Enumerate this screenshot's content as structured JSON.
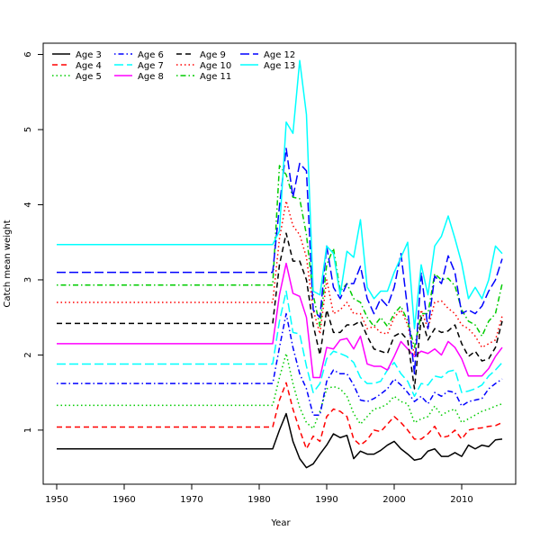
{
  "chart_data": {
    "type": "line",
    "title": "",
    "xlabel": "Year",
    "ylabel": "Catch mean weight",
    "xlim": [
      1948,
      2018
    ],
    "ylim": [
      0.28,
      6.15
    ],
    "xticks": [
      1950,
      1960,
      1970,
      1980,
      1990,
      2000,
      2010
    ],
    "yticks": [
      1,
      2,
      3,
      4,
      5,
      6
    ],
    "grid": false,
    "legend_position": "top-left",
    "x": [
      1950,
      1951,
      1952,
      1953,
      1954,
      1955,
      1956,
      1957,
      1958,
      1959,
      1960,
      1961,
      1962,
      1963,
      1964,
      1965,
      1966,
      1967,
      1968,
      1969,
      1970,
      1971,
      1972,
      1973,
      1974,
      1975,
      1976,
      1977,
      1978,
      1979,
      1980,
      1981,
      1982,
      1983,
      1984,
      1985,
      1986,
      1987,
      1988,
      1989,
      1990,
      1991,
      1992,
      1993,
      1994,
      1995,
      1996,
      1997,
      1998,
      1999,
      2000,
      2001,
      2002,
      2003,
      2004,
      2005,
      2006,
      2007,
      2008,
      2009,
      2010,
      2011,
      2012,
      2013,
      2014,
      2015,
      2016
    ],
    "series": [
      {
        "name": "Age 3",
        "color": "#000000",
        "dash": "solid",
        "values": [
          0.75,
          0.75,
          0.75,
          0.75,
          0.75,
          0.75,
          0.75,
          0.75,
          0.75,
          0.75,
          0.75,
          0.75,
          0.75,
          0.75,
          0.75,
          0.75,
          0.75,
          0.75,
          0.75,
          0.75,
          0.75,
          0.75,
          0.75,
          0.75,
          0.75,
          0.75,
          0.75,
          0.75,
          0.75,
          0.75,
          0.75,
          0.75,
          0.75,
          1.0,
          1.22,
          0.85,
          0.62,
          0.5,
          0.55,
          0.68,
          0.8,
          0.95,
          0.9,
          0.93,
          0.62,
          0.72,
          0.68,
          0.68,
          0.73,
          0.8,
          0.85,
          0.75,
          0.68,
          0.6,
          0.62,
          0.72,
          0.75,
          0.65,
          0.65,
          0.7,
          0.65,
          0.8,
          0.75,
          0.8,
          0.78,
          0.87,
          0.88
        ]
      },
      {
        "name": "Age 4",
        "color": "#ff0000",
        "dash": "dashed",
        "values": [
          1.04,
          1.04,
          1.04,
          1.04,
          1.04,
          1.04,
          1.04,
          1.04,
          1.04,
          1.04,
          1.04,
          1.04,
          1.04,
          1.04,
          1.04,
          1.04,
          1.04,
          1.04,
          1.04,
          1.04,
          1.04,
          1.04,
          1.04,
          1.04,
          1.04,
          1.04,
          1.04,
          1.04,
          1.04,
          1.04,
          1.04,
          1.04,
          1.04,
          1.4,
          1.63,
          1.28,
          1.0,
          0.75,
          0.92,
          0.85,
          1.18,
          1.28,
          1.25,
          1.18,
          0.88,
          0.8,
          0.87,
          1.0,
          0.98,
          1.08,
          1.18,
          1.1,
          1.0,
          0.88,
          0.88,
          0.95,
          1.05,
          0.9,
          0.92,
          1.0,
          0.88,
          1.0,
          1.02,
          1.03,
          1.05,
          1.06,
          1.1
        ]
      },
      {
        "name": "Age 5",
        "color": "#00cc00",
        "dash": "dotted",
        "values": [
          1.33,
          1.33,
          1.33,
          1.33,
          1.33,
          1.33,
          1.33,
          1.33,
          1.33,
          1.33,
          1.33,
          1.33,
          1.33,
          1.33,
          1.33,
          1.33,
          1.33,
          1.33,
          1.33,
          1.33,
          1.33,
          1.33,
          1.33,
          1.33,
          1.33,
          1.33,
          1.33,
          1.33,
          1.33,
          1.33,
          1.33,
          1.33,
          1.33,
          1.7,
          2.02,
          1.62,
          1.3,
          1.1,
          1.02,
          1.25,
          1.55,
          1.58,
          1.55,
          1.45,
          1.22,
          1.08,
          1.18,
          1.28,
          1.3,
          1.35,
          1.45,
          1.38,
          1.35,
          1.1,
          1.15,
          1.18,
          1.32,
          1.2,
          1.25,
          1.28,
          1.1,
          1.15,
          1.2,
          1.25,
          1.28,
          1.32,
          1.35
        ]
      },
      {
        "name": "Age 6",
        "color": "#0000ff",
        "dash": "dashdot",
        "values": [
          1.62,
          1.62,
          1.62,
          1.62,
          1.62,
          1.62,
          1.62,
          1.62,
          1.62,
          1.62,
          1.62,
          1.62,
          1.62,
          1.62,
          1.62,
          1.62,
          1.62,
          1.62,
          1.62,
          1.62,
          1.62,
          1.62,
          1.62,
          1.62,
          1.62,
          1.62,
          1.62,
          1.62,
          1.62,
          1.62,
          1.62,
          1.62,
          1.62,
          2.1,
          2.55,
          2.1,
          1.75,
          1.55,
          1.2,
          1.2,
          1.65,
          1.8,
          1.75,
          1.75,
          1.6,
          1.4,
          1.38,
          1.42,
          1.48,
          1.55,
          1.68,
          1.6,
          1.5,
          1.38,
          1.45,
          1.35,
          1.5,
          1.45,
          1.52,
          1.5,
          1.32,
          1.38,
          1.4,
          1.42,
          1.55,
          1.62,
          1.68
        ]
      },
      {
        "name": "Age 7",
        "color": "#00ffff",
        "dash": "longdash",
        "values": [
          1.88,
          1.88,
          1.88,
          1.88,
          1.88,
          1.88,
          1.88,
          1.88,
          1.88,
          1.88,
          1.88,
          1.88,
          1.88,
          1.88,
          1.88,
          1.88,
          1.88,
          1.88,
          1.88,
          1.88,
          1.88,
          1.88,
          1.88,
          1.88,
          1.88,
          1.88,
          1.88,
          1.88,
          1.88,
          1.88,
          1.88,
          1.88,
          1.88,
          2.45,
          2.85,
          2.3,
          2.28,
          1.85,
          1.5,
          1.62,
          1.95,
          2.05,
          2.02,
          1.98,
          1.9,
          1.7,
          1.62,
          1.62,
          1.65,
          1.8,
          1.9,
          1.75,
          1.65,
          1.45,
          1.62,
          1.6,
          1.72,
          1.7,
          1.78,
          1.8,
          1.5,
          1.52,
          1.55,
          1.6,
          1.72,
          1.8,
          1.9
        ]
      },
      {
        "name": "Age 8",
        "color": "#ff00ff",
        "dash": "solid",
        "values": [
          2.15,
          2.15,
          2.15,
          2.15,
          2.15,
          2.15,
          2.15,
          2.15,
          2.15,
          2.15,
          2.15,
          2.15,
          2.15,
          2.15,
          2.15,
          2.15,
          2.15,
          2.15,
          2.15,
          2.15,
          2.15,
          2.15,
          2.15,
          2.15,
          2.15,
          2.15,
          2.15,
          2.15,
          2.15,
          2.15,
          2.15,
          2.15,
          2.15,
          2.8,
          3.22,
          2.82,
          2.78,
          2.5,
          1.7,
          1.7,
          2.1,
          2.08,
          2.2,
          2.22,
          2.08,
          2.25,
          1.88,
          1.85,
          1.85,
          1.8,
          1.98,
          2.18,
          2.08,
          1.98,
          2.05,
          2.02,
          2.08,
          2.0,
          2.18,
          2.1,
          1.95,
          1.72,
          1.72,
          1.72,
          1.82,
          1.98,
          2.1
        ]
      },
      {
        "name": "Age 9",
        "color": "#000000",
        "dash": "dashed",
        "values": [
          2.42,
          2.42,
          2.42,
          2.42,
          2.42,
          2.42,
          2.42,
          2.42,
          2.42,
          2.42,
          2.42,
          2.42,
          2.42,
          2.42,
          2.42,
          2.42,
          2.42,
          2.42,
          2.42,
          2.42,
          2.42,
          2.42,
          2.42,
          2.42,
          2.42,
          2.42,
          2.42,
          2.42,
          2.42,
          2.42,
          2.42,
          2.42,
          2.42,
          3.2,
          3.62,
          3.25,
          3.25,
          3.0,
          2.4,
          2.0,
          2.6,
          2.3,
          2.3,
          2.4,
          2.4,
          2.45,
          2.25,
          2.08,
          2.05,
          2.02,
          2.25,
          2.3,
          2.2,
          1.55,
          2.5,
          2.2,
          2.35,
          2.3,
          2.32,
          2.4,
          2.15,
          1.98,
          2.05,
          1.92,
          1.95,
          2.1,
          2.45
        ]
      },
      {
        "name": "Age 10",
        "color": "#ff0000",
        "dash": "dotted",
        "values": [
          2.7,
          2.7,
          2.7,
          2.7,
          2.7,
          2.7,
          2.7,
          2.7,
          2.7,
          2.7,
          2.7,
          2.7,
          2.7,
          2.7,
          2.7,
          2.7,
          2.7,
          2.7,
          2.7,
          2.7,
          2.7,
          2.7,
          2.7,
          2.7,
          2.7,
          2.7,
          2.7,
          2.7,
          2.7,
          2.7,
          2.7,
          2.7,
          2.7,
          3.55,
          4.05,
          3.72,
          3.6,
          3.3,
          2.6,
          2.28,
          3.0,
          2.55,
          2.6,
          2.7,
          2.55,
          2.55,
          2.35,
          2.38,
          2.3,
          2.28,
          2.5,
          2.6,
          2.4,
          2.0,
          2.6,
          2.35,
          2.7,
          2.72,
          2.62,
          2.55,
          2.4,
          2.35,
          2.25,
          2.1,
          2.15,
          2.2,
          2.52
        ]
      },
      {
        "name": "Age 11",
        "color": "#00cc00",
        "dash": "dashdot",
        "values": [
          2.93,
          2.93,
          2.93,
          2.93,
          2.93,
          2.93,
          2.93,
          2.93,
          2.93,
          2.93,
          2.93,
          2.93,
          2.93,
          2.93,
          2.93,
          2.93,
          2.93,
          2.93,
          2.93,
          2.93,
          2.93,
          2.93,
          2.93,
          2.93,
          2.93,
          2.93,
          2.93,
          2.93,
          2.93,
          2.93,
          2.93,
          2.93,
          2.93,
          4.52,
          4.4,
          4.1,
          4.08,
          3.6,
          2.8,
          2.38,
          3.2,
          3.42,
          2.85,
          2.95,
          2.75,
          2.7,
          2.5,
          2.38,
          2.5,
          2.38,
          2.55,
          2.65,
          2.45,
          2.1,
          2.55,
          2.55,
          3.08,
          3.0,
          3.02,
          2.92,
          2.6,
          2.45,
          2.4,
          2.25,
          2.45,
          2.55,
          2.95
        ]
      },
      {
        "name": "Age 12",
        "color": "#0000ff",
        "dash": "longdash",
        "values": [
          3.1,
          3.1,
          3.1,
          3.1,
          3.1,
          3.1,
          3.1,
          3.1,
          3.1,
          3.1,
          3.1,
          3.1,
          3.1,
          3.1,
          3.1,
          3.1,
          3.1,
          3.1,
          3.1,
          3.1,
          3.1,
          3.1,
          3.1,
          3.1,
          3.1,
          3.1,
          3.1,
          3.1,
          3.1,
          3.1,
          3.1,
          3.1,
          3.1,
          3.98,
          4.75,
          4.1,
          4.55,
          4.45,
          2.6,
          2.5,
          3.45,
          2.9,
          2.75,
          2.95,
          2.95,
          3.18,
          2.75,
          2.55,
          2.75,
          2.65,
          2.9,
          3.35,
          2.6,
          1.75,
          3.1,
          2.35,
          3.05,
          2.95,
          3.32,
          3.1,
          2.55,
          2.6,
          2.55,
          2.65,
          2.85,
          3.0,
          3.28
        ]
      },
      {
        "name": "Age 13",
        "color": "#00ffff",
        "dash": "solid",
        "values": [
          3.47,
          3.47,
          3.47,
          3.47,
          3.47,
          3.47,
          3.47,
          3.47,
          3.47,
          3.47,
          3.47,
          3.47,
          3.47,
          3.47,
          3.47,
          3.47,
          3.47,
          3.47,
          3.47,
          3.47,
          3.47,
          3.47,
          3.47,
          3.47,
          3.47,
          3.47,
          3.47,
          3.47,
          3.47,
          3.47,
          3.47,
          3.47,
          3.47,
          3.65,
          5.1,
          4.95,
          5.92,
          5.2,
          2.85,
          2.8,
          3.45,
          3.35,
          2.8,
          3.38,
          3.3,
          3.8,
          2.9,
          2.75,
          2.85,
          2.85,
          3.1,
          3.3,
          3.5,
          2.35,
          3.2,
          2.8,
          3.45,
          3.58,
          3.85,
          3.55,
          3.22,
          2.75,
          2.9,
          2.75,
          3.0,
          3.45,
          3.35
        ]
      }
    ]
  }
}
